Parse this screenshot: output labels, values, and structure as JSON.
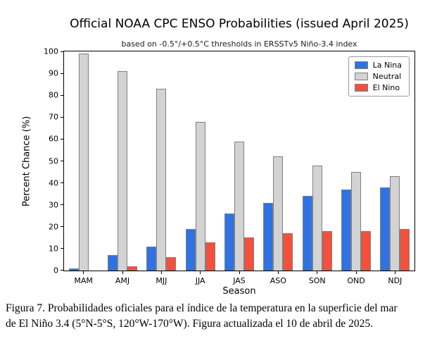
{
  "figure": {
    "caption_line1": "Figura 7. Probabilidades oficiales para el índice de la temperatura en la superficie del mar",
    "caption_line2": "de El Niño 3.4  (5°N-5°S, 120°W-170°W). Figura actualizada el 10 de abril de 2025."
  },
  "chart_data": {
    "type": "bar",
    "grouped": true,
    "title": "Official NOAA CPC ENSO Probabilities (issued April 2025)",
    "subtitle": "based on -0.5°/+0.5°C thresholds in ERSSTv5 Niño-3.4 index",
    "xlabel": "Season",
    "ylabel": "Percent Chance (%)",
    "categories": [
      "MAM",
      "AMJ",
      "MJJ",
      "JJA",
      "JAS",
      "ASO",
      "SON",
      "OND",
      "NDJ"
    ],
    "series": [
      {
        "name": "La Nina",
        "color": "#2e72e4",
        "values": [
          1,
          7,
          11,
          19,
          26,
          31,
          34,
          37,
          38
        ]
      },
      {
        "name": "Neutral",
        "color": "#d3d3d3",
        "values": [
          99,
          91,
          83,
          68,
          59,
          52,
          48,
          45,
          43
        ]
      },
      {
        "name": "El Nino",
        "color": "#f4503c",
        "values": [
          0,
          2,
          6,
          13,
          15,
          17,
          18,
          18,
          19
        ]
      }
    ],
    "ylim": [
      0,
      100
    ],
    "yticks": [
      0,
      10,
      20,
      30,
      40,
      50,
      60,
      70,
      80,
      90,
      100
    ],
    "legend_position": "upper right",
    "grid": false,
    "bar_edge_color": "#7f7f7f"
  }
}
